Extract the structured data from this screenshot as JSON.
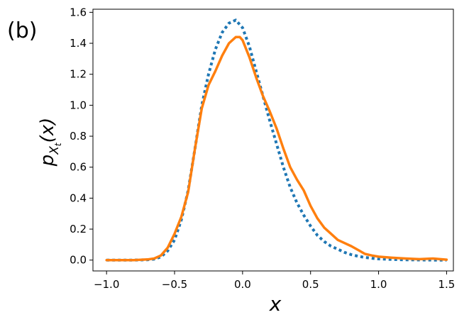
{
  "chart_data": {
    "type": "line",
    "panel_label": "(b)",
    "xlabel": "x",
    "ylabel": "p_{X_t}(x)",
    "xlim": [
      -1.1,
      1.55
    ],
    "ylim": [
      -0.07,
      1.62
    ],
    "x_ticks": [
      -1.0,
      -0.5,
      0.0,
      0.5,
      1.0,
      1.5
    ],
    "x_tick_labels": [
      "−1.0",
      "−0.5",
      "0.0",
      "0.5",
      "1.0",
      "1.5"
    ],
    "y_ticks": [
      0.0,
      0.2,
      0.4,
      0.6,
      0.8,
      1.0,
      1.2,
      1.4,
      1.6
    ],
    "y_tick_labels": [
      "0.0",
      "0.2",
      "0.4",
      "0.6",
      "0.8",
      "1.0",
      "1.2",
      "1.4",
      "1.6"
    ],
    "grid": false,
    "series": [
      {
        "style": "dotted",
        "color": "#1f77b4",
        "x": [
          -1.0,
          -0.8,
          -0.7,
          -0.65,
          -0.6,
          -0.55,
          -0.5,
          -0.45,
          -0.4,
          -0.35,
          -0.3,
          -0.25,
          -0.2,
          -0.15,
          -0.1,
          -0.05,
          0.0,
          0.05,
          0.1,
          0.15,
          0.2,
          0.25,
          0.3,
          0.35,
          0.4,
          0.45,
          0.5,
          0.55,
          0.6,
          0.65,
          0.7,
          0.75,
          0.8,
          0.85,
          0.9,
          0.95,
          1.0,
          1.1,
          1.2,
          1.3,
          1.4,
          1.5
        ],
        "y": [
          0.0,
          0.0,
          0.002,
          0.006,
          0.02,
          0.06,
          0.13,
          0.26,
          0.45,
          0.72,
          1.0,
          1.2,
          1.36,
          1.47,
          1.53,
          1.55,
          1.5,
          1.38,
          1.22,
          1.06,
          0.9,
          0.75,
          0.6,
          0.47,
          0.37,
          0.29,
          0.22,
          0.16,
          0.12,
          0.09,
          0.07,
          0.05,
          0.035,
          0.025,
          0.017,
          0.012,
          0.008,
          0.004,
          0.002,
          0.001,
          0.0,
          0.0
        ]
      },
      {
        "style": "solid",
        "color": "#ff7f0e",
        "x": [
          -1.0,
          -0.8,
          -0.7,
          -0.65,
          -0.6,
          -0.55,
          -0.5,
          -0.45,
          -0.4,
          -0.35,
          -0.3,
          -0.25,
          -0.2,
          -0.15,
          -0.1,
          -0.05,
          -0.02,
          0.0,
          0.05,
          0.1,
          0.15,
          0.2,
          0.25,
          0.3,
          0.35,
          0.4,
          0.45,
          0.5,
          0.55,
          0.6,
          0.65,
          0.7,
          0.75,
          0.8,
          0.85,
          0.9,
          0.95,
          1.0,
          1.1,
          1.2,
          1.3,
          1.4,
          1.5
        ],
        "y": [
          0.0,
          0.0,
          0.004,
          0.01,
          0.03,
          0.08,
          0.17,
          0.28,
          0.44,
          0.72,
          0.98,
          1.13,
          1.22,
          1.32,
          1.4,
          1.44,
          1.44,
          1.42,
          1.31,
          1.18,
          1.06,
          0.96,
          0.85,
          0.72,
          0.6,
          0.52,
          0.45,
          0.35,
          0.27,
          0.21,
          0.17,
          0.13,
          0.11,
          0.09,
          0.065,
          0.04,
          0.03,
          0.022,
          0.015,
          0.01,
          0.006,
          0.01,
          0.003
        ]
      }
    ]
  }
}
